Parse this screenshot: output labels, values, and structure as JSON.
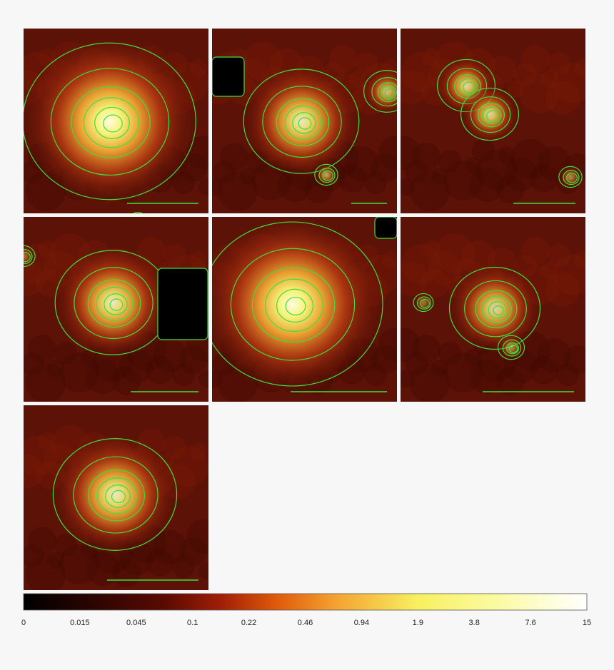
{
  "colorbar": {
    "ticks": [
      0,
      0.015,
      0.045,
      0.1,
      0.22,
      0.46,
      0.94,
      1.9,
      3.8,
      7.6,
      15
    ]
  }
}
